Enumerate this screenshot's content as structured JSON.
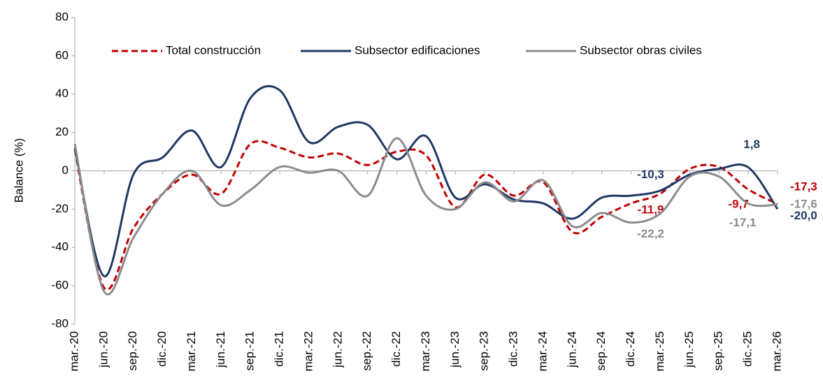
{
  "chart_data": {
    "type": "line",
    "y_label": "Balance (%)",
    "categories": [
      "mar.-20",
      "jun.-20",
      "sep.-20",
      "dic.-20",
      "mar.-21",
      "jun.-21",
      "sep.-21",
      "dic.-21",
      "mar.-22",
      "jun.-22",
      "sep.-22",
      "dic.-22",
      "mar.-23",
      "jun.-23",
      "sep.-23",
      "dic.-23",
      "mar.-24",
      "jun.-24",
      "sep.-24",
      "dic.-24",
      "mar.-25",
      "jun.-25",
      "sep.-25",
      "dic.-25",
      "mar.-26"
    ],
    "series": [
      {
        "name": "Total construcción",
        "color": "#c00000",
        "dashed": true,
        "values": [
          11,
          -61,
          -30,
          -12,
          -2,
          -12,
          14,
          12,
          7,
          9,
          3,
          10,
          8,
          -19,
          -2,
          -13,
          -6,
          -32,
          -24,
          -17,
          -11.9,
          1,
          2,
          -9.7,
          -17.3
        ],
        "value_labels": [
          null,
          null,
          null,
          null,
          null,
          null,
          null,
          null,
          null,
          null,
          null,
          null,
          null,
          null,
          null,
          null,
          null,
          null,
          null,
          null,
          "-11,9",
          null,
          null,
          "-9,7",
          "-17,3"
        ]
      },
      {
        "name": "Subsector edificaciones",
        "color": "#1f3864",
        "dashed": false,
        "values": [
          12,
          -55,
          -2,
          7,
          21,
          2,
          38,
          42,
          15,
          23,
          24,
          6,
          18,
          -14,
          -7,
          -15,
          -17,
          -25,
          -14,
          -13,
          -10.3,
          -2,
          1,
          1.8,
          -20.0
        ],
        "value_labels": [
          null,
          null,
          null,
          null,
          null,
          null,
          null,
          null,
          null,
          null,
          null,
          null,
          null,
          null,
          null,
          null,
          null,
          null,
          null,
          null,
          "-10,3",
          null,
          null,
          "1,8",
          "-20,0"
        ]
      },
      {
        "name": "Subsector obras civiles",
        "color": "#8c8c8c",
        "dashed": false,
        "values": [
          14,
          -63,
          -35,
          -12,
          0,
          -18,
          -10,
          2,
          -1,
          0,
          -13,
          17,
          -13,
          -20,
          -6,
          -16,
          -5,
          -29,
          -22,
          -27,
          -22.2,
          -3,
          -3,
          -17.1,
          -17.6
        ],
        "value_labels": [
          null,
          null,
          null,
          null,
          null,
          null,
          null,
          null,
          null,
          null,
          null,
          null,
          null,
          null,
          null,
          null,
          null,
          null,
          null,
          null,
          "-22,2",
          null,
          null,
          "-17,1",
          "-17,6"
        ]
      }
    ],
    "ylim": [
      -80,
      80
    ],
    "yticks": [
      -80,
      -60,
      -40,
      -20,
      0,
      20,
      40,
      60,
      80
    ],
    "grid": false,
    "legend": "top"
  }
}
